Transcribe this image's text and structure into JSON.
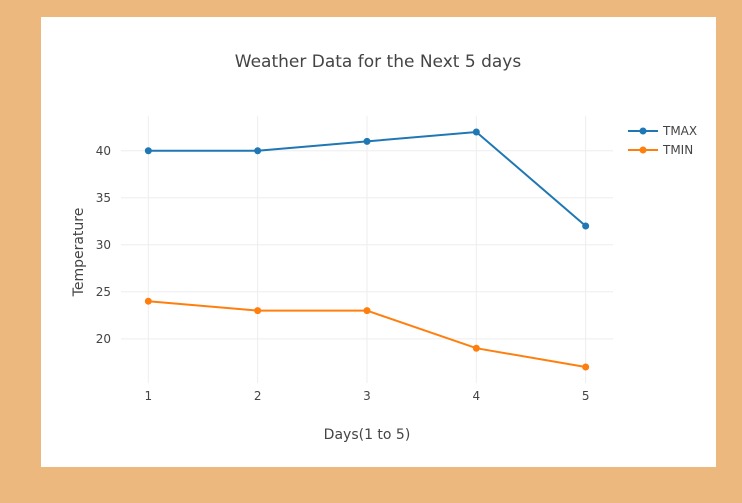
{
  "chart_data": {
    "type": "line",
    "title": "Weather Data for the Next 5 days",
    "xlabel": "Days(1 to 5)",
    "ylabel": "Temperature",
    "x": [
      1,
      2,
      3,
      4,
      5
    ],
    "xticks": [
      "1",
      "2",
      "3",
      "4",
      "5"
    ],
    "yticks": [
      20,
      25,
      30,
      35,
      40
    ],
    "ylim": [
      15.3,
      43.7
    ],
    "grid": true,
    "legend_position": "top-right",
    "series": [
      {
        "name": "TMAX",
        "color": "#1f77b4",
        "values": [
          40,
          40,
          41,
          42,
          32
        ]
      },
      {
        "name": "TMIN",
        "color": "#ff7f0e",
        "values": [
          24,
          23,
          23,
          19,
          17
        ]
      }
    ]
  }
}
